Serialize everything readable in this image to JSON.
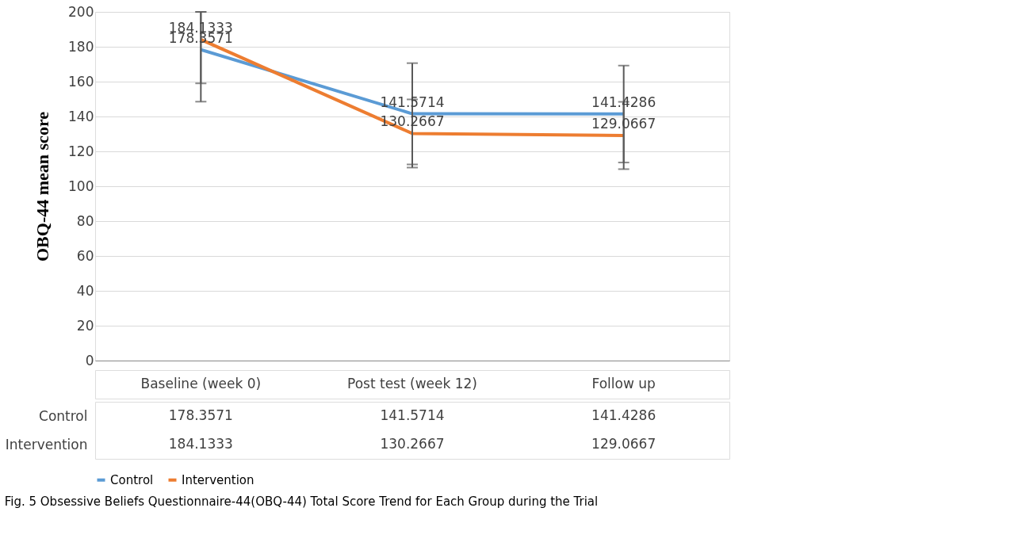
{
  "chart_data": {
    "type": "line",
    "categories": [
      "Baseline (week 0)",
      "Post test (week 12)",
      "Follow up"
    ],
    "series": [
      {
        "name": "Control",
        "color": "#5b9bd5",
        "values": [
          178.3571,
          141.5714,
          141.4286
        ],
        "value_labels": [
          "178.3571",
          "141.5714",
          "141.4286"
        ],
        "errors": [
          [
            148.5,
            200
          ],
          [
            112.5,
            170.6
          ],
          [
            113.6,
            169.2
          ]
        ]
      },
      {
        "name": "Intervention",
        "color": "#ed7d31",
        "values": [
          184.1333,
          130.2667,
          129.0667
        ],
        "value_labels": [
          "184.1333",
          "130.2667",
          "129.0667"
        ],
        "errors": [
          [
            159,
            200
          ],
          [
            110.7,
            149.8
          ],
          [
            109.8,
            148.4
          ]
        ]
      }
    ],
    "ylabel": "OBQ-44  mean score",
    "ylim": [
      0,
      200
    ],
    "yticks": [
      0,
      20,
      40,
      60,
      80,
      100,
      120,
      140,
      160,
      180,
      200
    ],
    "grid": "y",
    "legend": "bottom",
    "data_labels": true,
    "marker": "none",
    "line_style": "solid",
    "annotations": [
      "Fig. 5  Obsessive Beliefs Questionnaire-44(OBQ-44) Total Score Trend for Each Group during the Trial"
    ]
  }
}
